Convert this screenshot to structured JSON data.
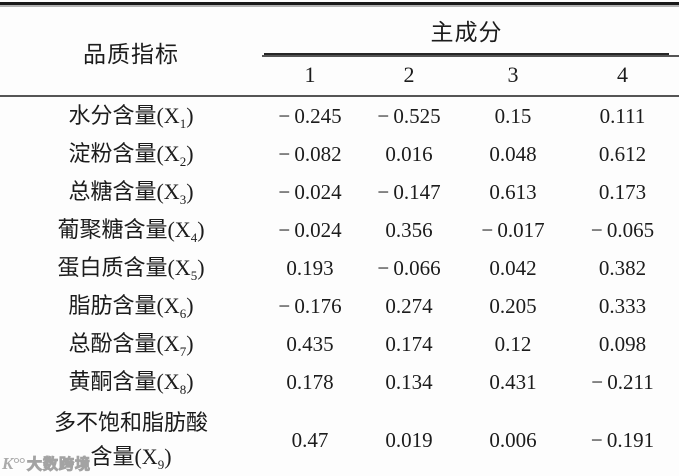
{
  "table": {
    "header": {
      "indicator_label": "品质指标",
      "group_label": "主成分",
      "components": [
        "1",
        "2",
        "3",
        "4"
      ]
    },
    "rows": [
      {
        "lines": [
          "水分含量"
        ],
        "sub": "1",
        "values": [
          "-0.245",
          "-0.525",
          "0.15",
          "0.111"
        ]
      },
      {
        "lines": [
          "淀粉含量"
        ],
        "sub": "2",
        "values": [
          "-0.082",
          "0.016",
          "0.048",
          "0.612"
        ]
      },
      {
        "lines": [
          "总糖含量"
        ],
        "sub": "3",
        "values": [
          "-0.024",
          "-0.147",
          "0.613",
          "0.173"
        ]
      },
      {
        "lines": [
          "葡聚糖含量"
        ],
        "sub": "4",
        "values": [
          "-0.024",
          "0.356",
          "-0.017",
          "-0.065"
        ]
      },
      {
        "lines": [
          "蛋白质含量"
        ],
        "sub": "5",
        "values": [
          "0.193",
          "-0.066",
          "0.042",
          "0.382"
        ]
      },
      {
        "lines": [
          "脂肪含量"
        ],
        "sub": "6",
        "values": [
          "-0.176",
          "0.274",
          "0.205",
          "0.333"
        ]
      },
      {
        "lines": [
          "总酚含量"
        ],
        "sub": "7",
        "values": [
          "0.435",
          "0.174",
          "0.12",
          "0.098"
        ]
      },
      {
        "lines": [
          "黄酮含量"
        ],
        "sub": "8",
        "values": [
          "0.178",
          "0.134",
          "0.431",
          "-0.211"
        ]
      },
      {
        "lines": [
          "多不饱和脂肪酸",
          "含量"
        ],
        "sub": "9",
        "values": [
          "0.47",
          "0.019",
          "0.006",
          "-0.191"
        ]
      }
    ]
  },
  "watermark": {
    "logo": "K°°",
    "text": "大数跨境"
  }
}
